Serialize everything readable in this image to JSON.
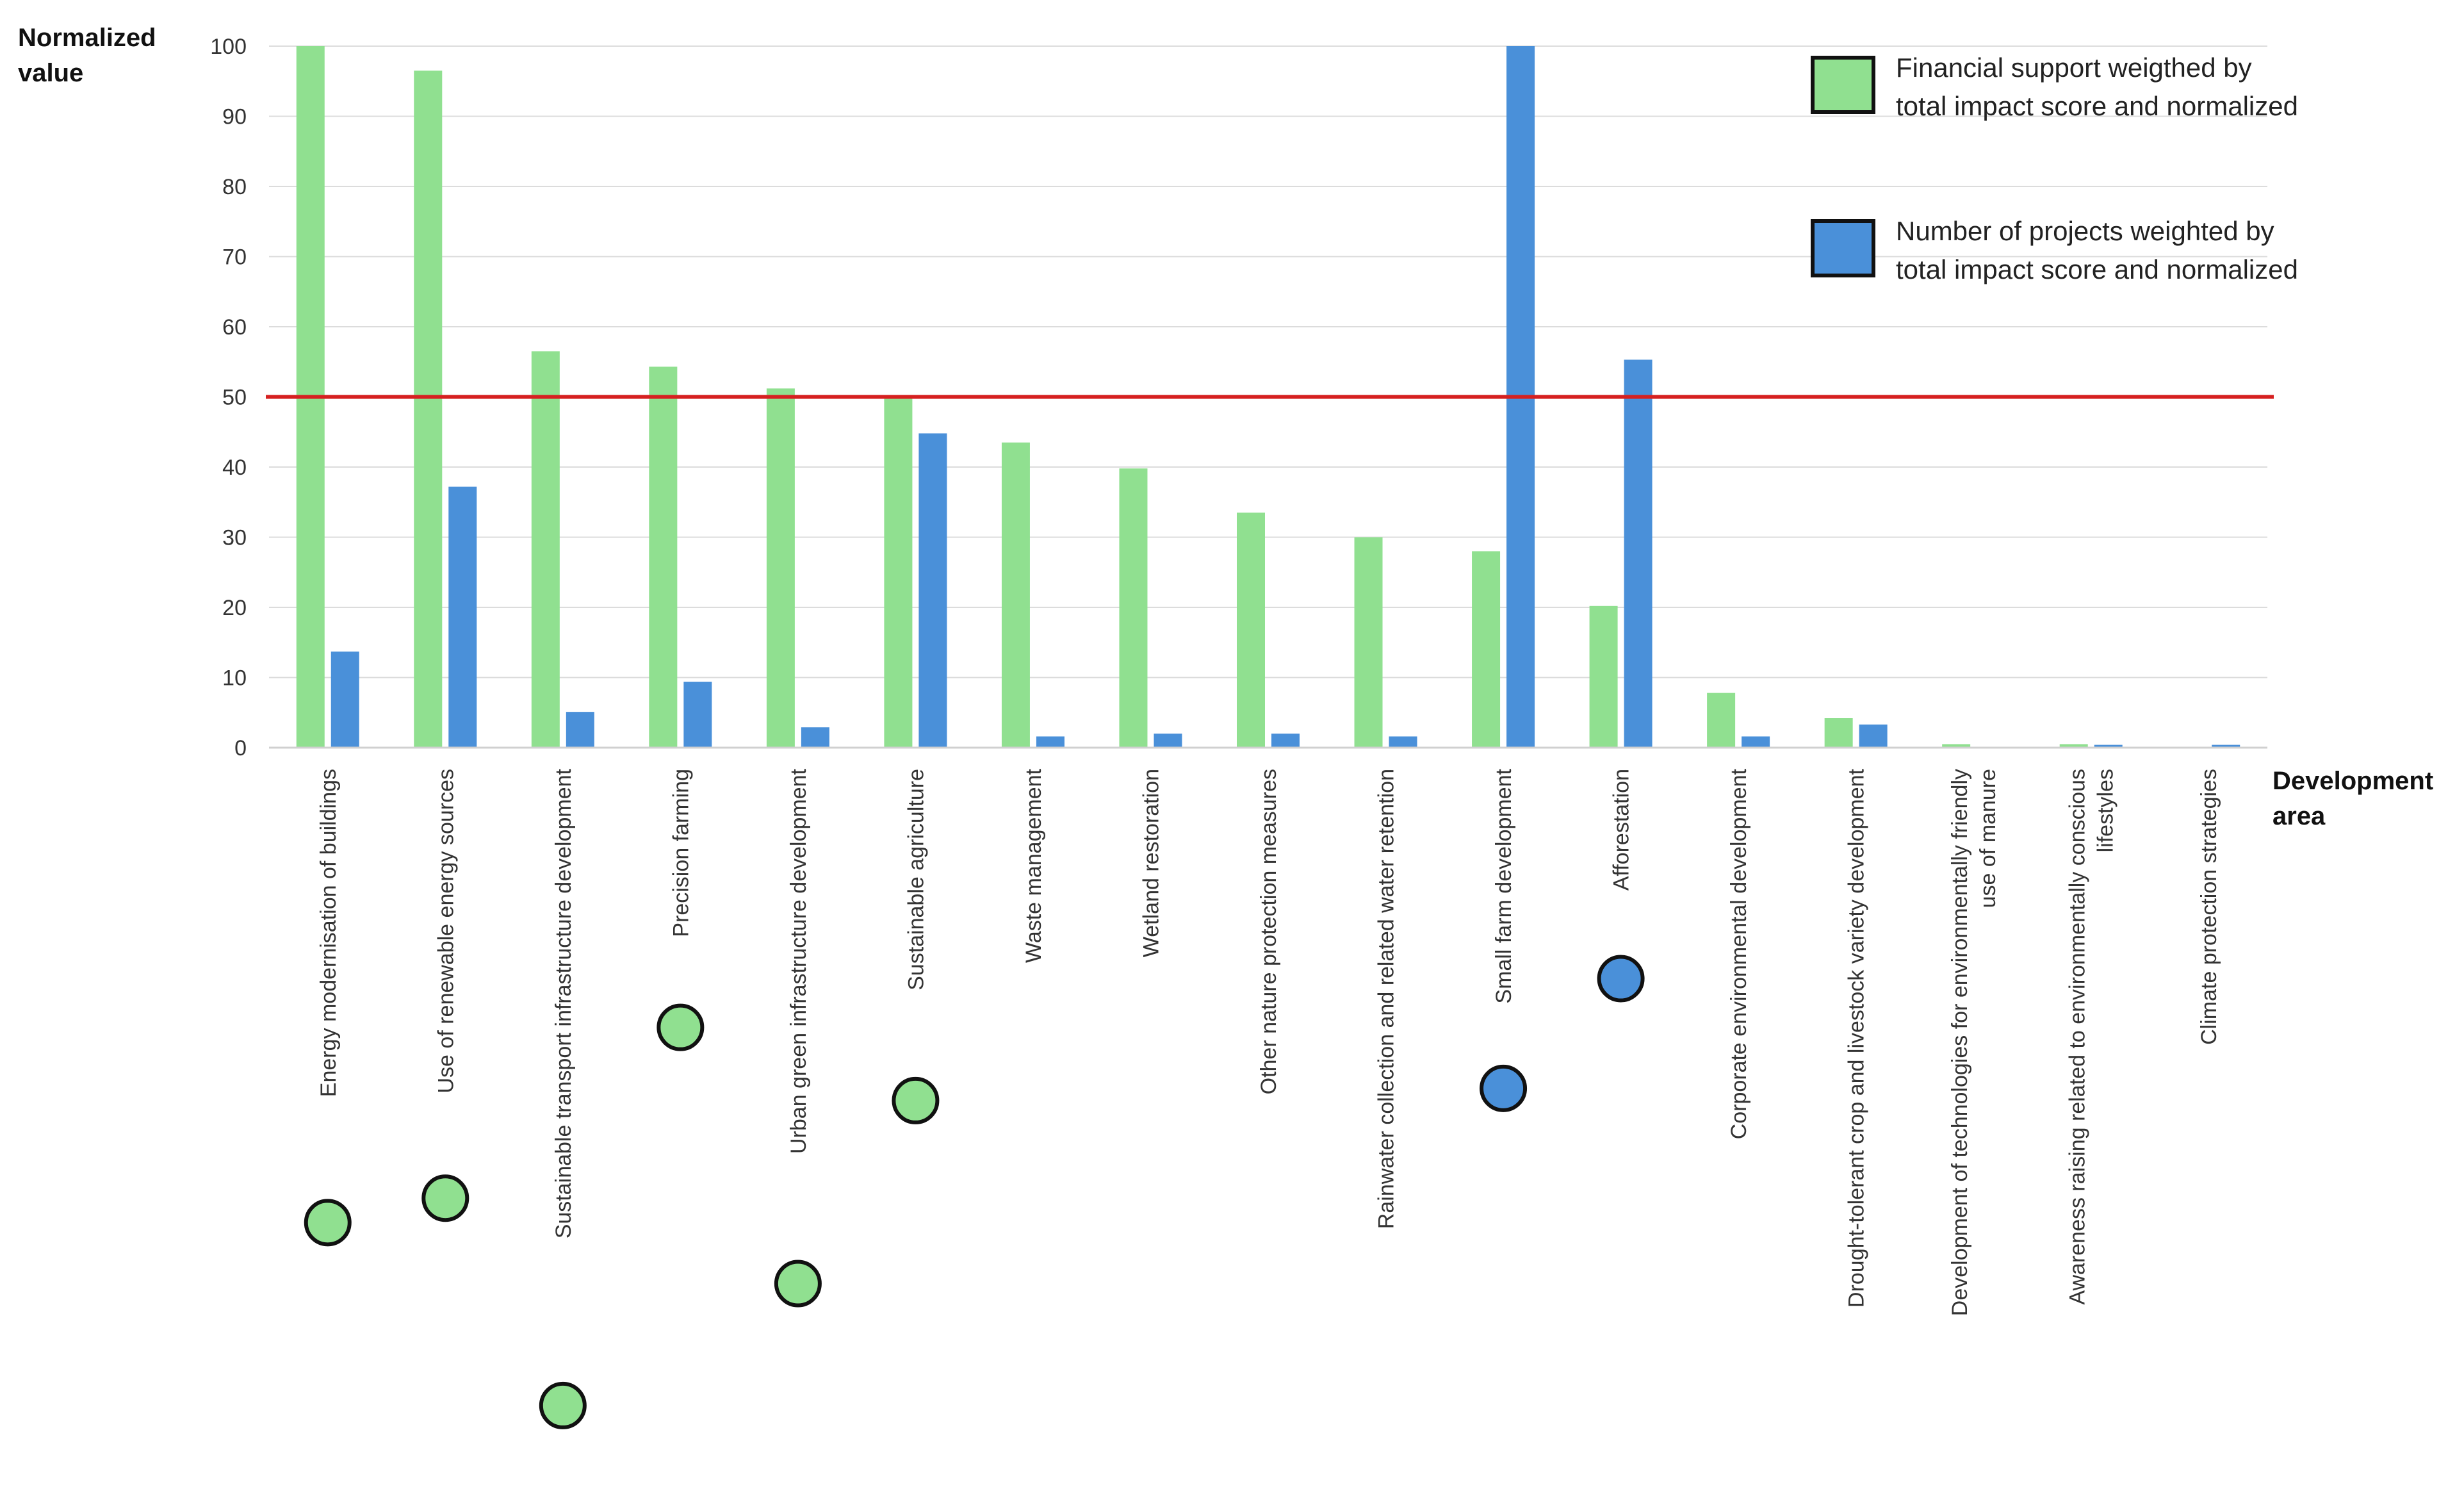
{
  "chart_data": {
    "type": "bar",
    "ylabel": "Normalized value",
    "xlabel": "Development area",
    "ylim": [
      0,
      100
    ],
    "yticks": [
      0,
      10,
      20,
      30,
      40,
      50,
      60,
      70,
      80,
      90,
      100
    ],
    "grid": true,
    "legend_position": "top-right",
    "reference_line": {
      "value": 50,
      "color": "#d62020"
    },
    "categories": [
      "Energy modernisation of buildings",
      "Use of renewable energy sources",
      "Sustainable transport infrastructure development",
      "Precision farming",
      "Urban green infrastructure development",
      "Sustainable agriculture",
      "Waste management",
      "Wetland restoration",
      "Other nature protection measures",
      "Rainwater collection and related water retention",
      "Small farm development",
      "Afforestation",
      "Corporate environmental development",
      "Drought-tolerant crop and livestock variety development",
      "Development of technologies for environmentally friendly use of manure",
      "Awareness raising related to environmentally conscious lifestyles",
      "Climate protection strategies"
    ],
    "series": [
      {
        "name": "Financial support weigthed by total impact score and normalized",
        "color": "#90e090",
        "values": [
          100,
          96.5,
          56.5,
          54.3,
          51.2,
          50,
          43.5,
          39.8,
          33.5,
          30,
          28,
          20.2,
          7.8,
          4.2,
          0.5,
          0.5,
          0
        ]
      },
      {
        "name": "Number of projects weighted by total impact score and normalized",
        "color": "#4a90d9",
        "values": [
          13.7,
          37.2,
          5.1,
          9.4,
          2.9,
          44.8,
          1.6,
          2,
          2,
          1.6,
          100,
          55.3,
          1.6,
          3.3,
          0,
          0.4,
          0.4
        ]
      }
    ],
    "markers": [
      {
        "category": "Energy modernisation of buildings",
        "color": "#90e090"
      },
      {
        "category": "Use of renewable energy sources",
        "color": "#90e090"
      },
      {
        "category": "Sustainable transport infrastructure development",
        "color": "#90e090"
      },
      {
        "category": "Precision farming",
        "color": "#90e090"
      },
      {
        "category": "Urban green infrastructure development",
        "color": "#90e090"
      },
      {
        "category": "Sustainable agriculture",
        "color": "#90e090"
      },
      {
        "category": "Small farm development",
        "color": "#4a90d9"
      },
      {
        "category": "Afforestation",
        "color": "#4a90d9"
      }
    ]
  }
}
